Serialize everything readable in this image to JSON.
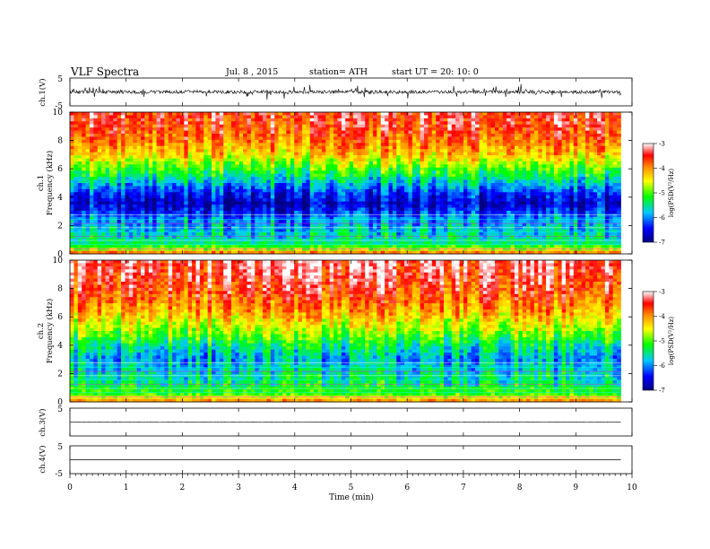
{
  "header": {
    "title": "VLF  Spectra",
    "date": "Jul.  8  , 2015",
    "station": "station= ATH",
    "start": "start  UT  =    20: 10: 0"
  },
  "chart_data": {
    "type": "heatmap",
    "xlabel": "Time  (min)",
    "xlim": [
      0,
      10
    ],
    "x_ticks": [
      "0",
      "1",
      "2",
      "3",
      "4",
      "5",
      "6",
      "7",
      "8",
      "9",
      "10"
    ],
    "data_end_min": 9.8,
    "panels": [
      {
        "kind": "waveform",
        "ylabel": "ch.1(V)",
        "ylim": [
          -5,
          5
        ],
        "y_ticks": [
          "5",
          "-5"
        ],
        "baseline": 0.0,
        "amplitude": 0.6
      },
      {
        "kind": "spectrogram",
        "ylabel_line1": "ch.1",
        "ylabel_line2": "Frequency  (kHz)",
        "ylim": [
          0,
          10
        ],
        "y_ticks": [
          "0",
          "2",
          "4",
          "6",
          "8",
          "10"
        ],
        "colorbar": {
          "label": "log(PSD(V²/Hz)",
          "range": [
            -7,
            -3
          ],
          "ticks": [
            "-3",
            "-4",
            "-5",
            "-6",
            "-7"
          ]
        },
        "mean_profile": [
          [
            0.0,
            -3.6
          ],
          [
            0.3,
            -4.7
          ],
          [
            0.8,
            -5.5
          ],
          [
            1.5,
            -5.7
          ],
          [
            2.5,
            -6.0
          ],
          [
            3.0,
            -6.4
          ],
          [
            3.5,
            -6.7
          ],
          [
            4.2,
            -6.4
          ],
          [
            5.0,
            -5.8
          ],
          [
            5.6,
            -5.3
          ],
          [
            6.2,
            -4.9
          ],
          [
            7.0,
            -4.3
          ],
          [
            8.0,
            -3.9
          ],
          [
            9.0,
            -3.6
          ],
          [
            10.0,
            -3.5
          ]
        ]
      },
      {
        "kind": "spectrogram",
        "ylabel_line1": "ch.2",
        "ylabel_line2": "Frequency  (kHz)",
        "ylim": [
          0,
          10
        ],
        "y_ticks": [
          "0",
          "2",
          "4",
          "6",
          "8",
          "10"
        ],
        "colorbar": {
          "label": "log(PSD(V²/Hz)",
          "range": [
            -7,
            -3
          ],
          "ticks": [
            "-3",
            "-4",
            "-5",
            "-6",
            "-7"
          ]
        },
        "mean_profile": [
          [
            0.0,
            -3.8
          ],
          [
            0.5,
            -5.0
          ],
          [
            1.5,
            -5.5
          ],
          [
            2.5,
            -5.7
          ],
          [
            3.0,
            -5.9
          ],
          [
            3.5,
            -5.7
          ],
          [
            4.2,
            -5.3
          ],
          [
            5.0,
            -4.8
          ],
          [
            6.0,
            -4.3
          ],
          [
            7.0,
            -3.9
          ],
          [
            8.0,
            -3.6
          ],
          [
            9.0,
            -3.4
          ],
          [
            10.0,
            -3.3
          ]
        ]
      },
      {
        "kind": "waveform",
        "ylabel": "ch.3(V)",
        "ylim": [
          -5,
          5
        ],
        "y_ticks": [
          "5"
        ],
        "baseline": 0.0,
        "amplitude": 0.1
      },
      {
        "kind": "waveform",
        "ylabel": "ch.4(V)",
        "ylim": [
          -5,
          5
        ],
        "y_ticks": [
          "5",
          "-5"
        ],
        "baseline": 0.0,
        "amplitude": 0.0
      }
    ]
  }
}
